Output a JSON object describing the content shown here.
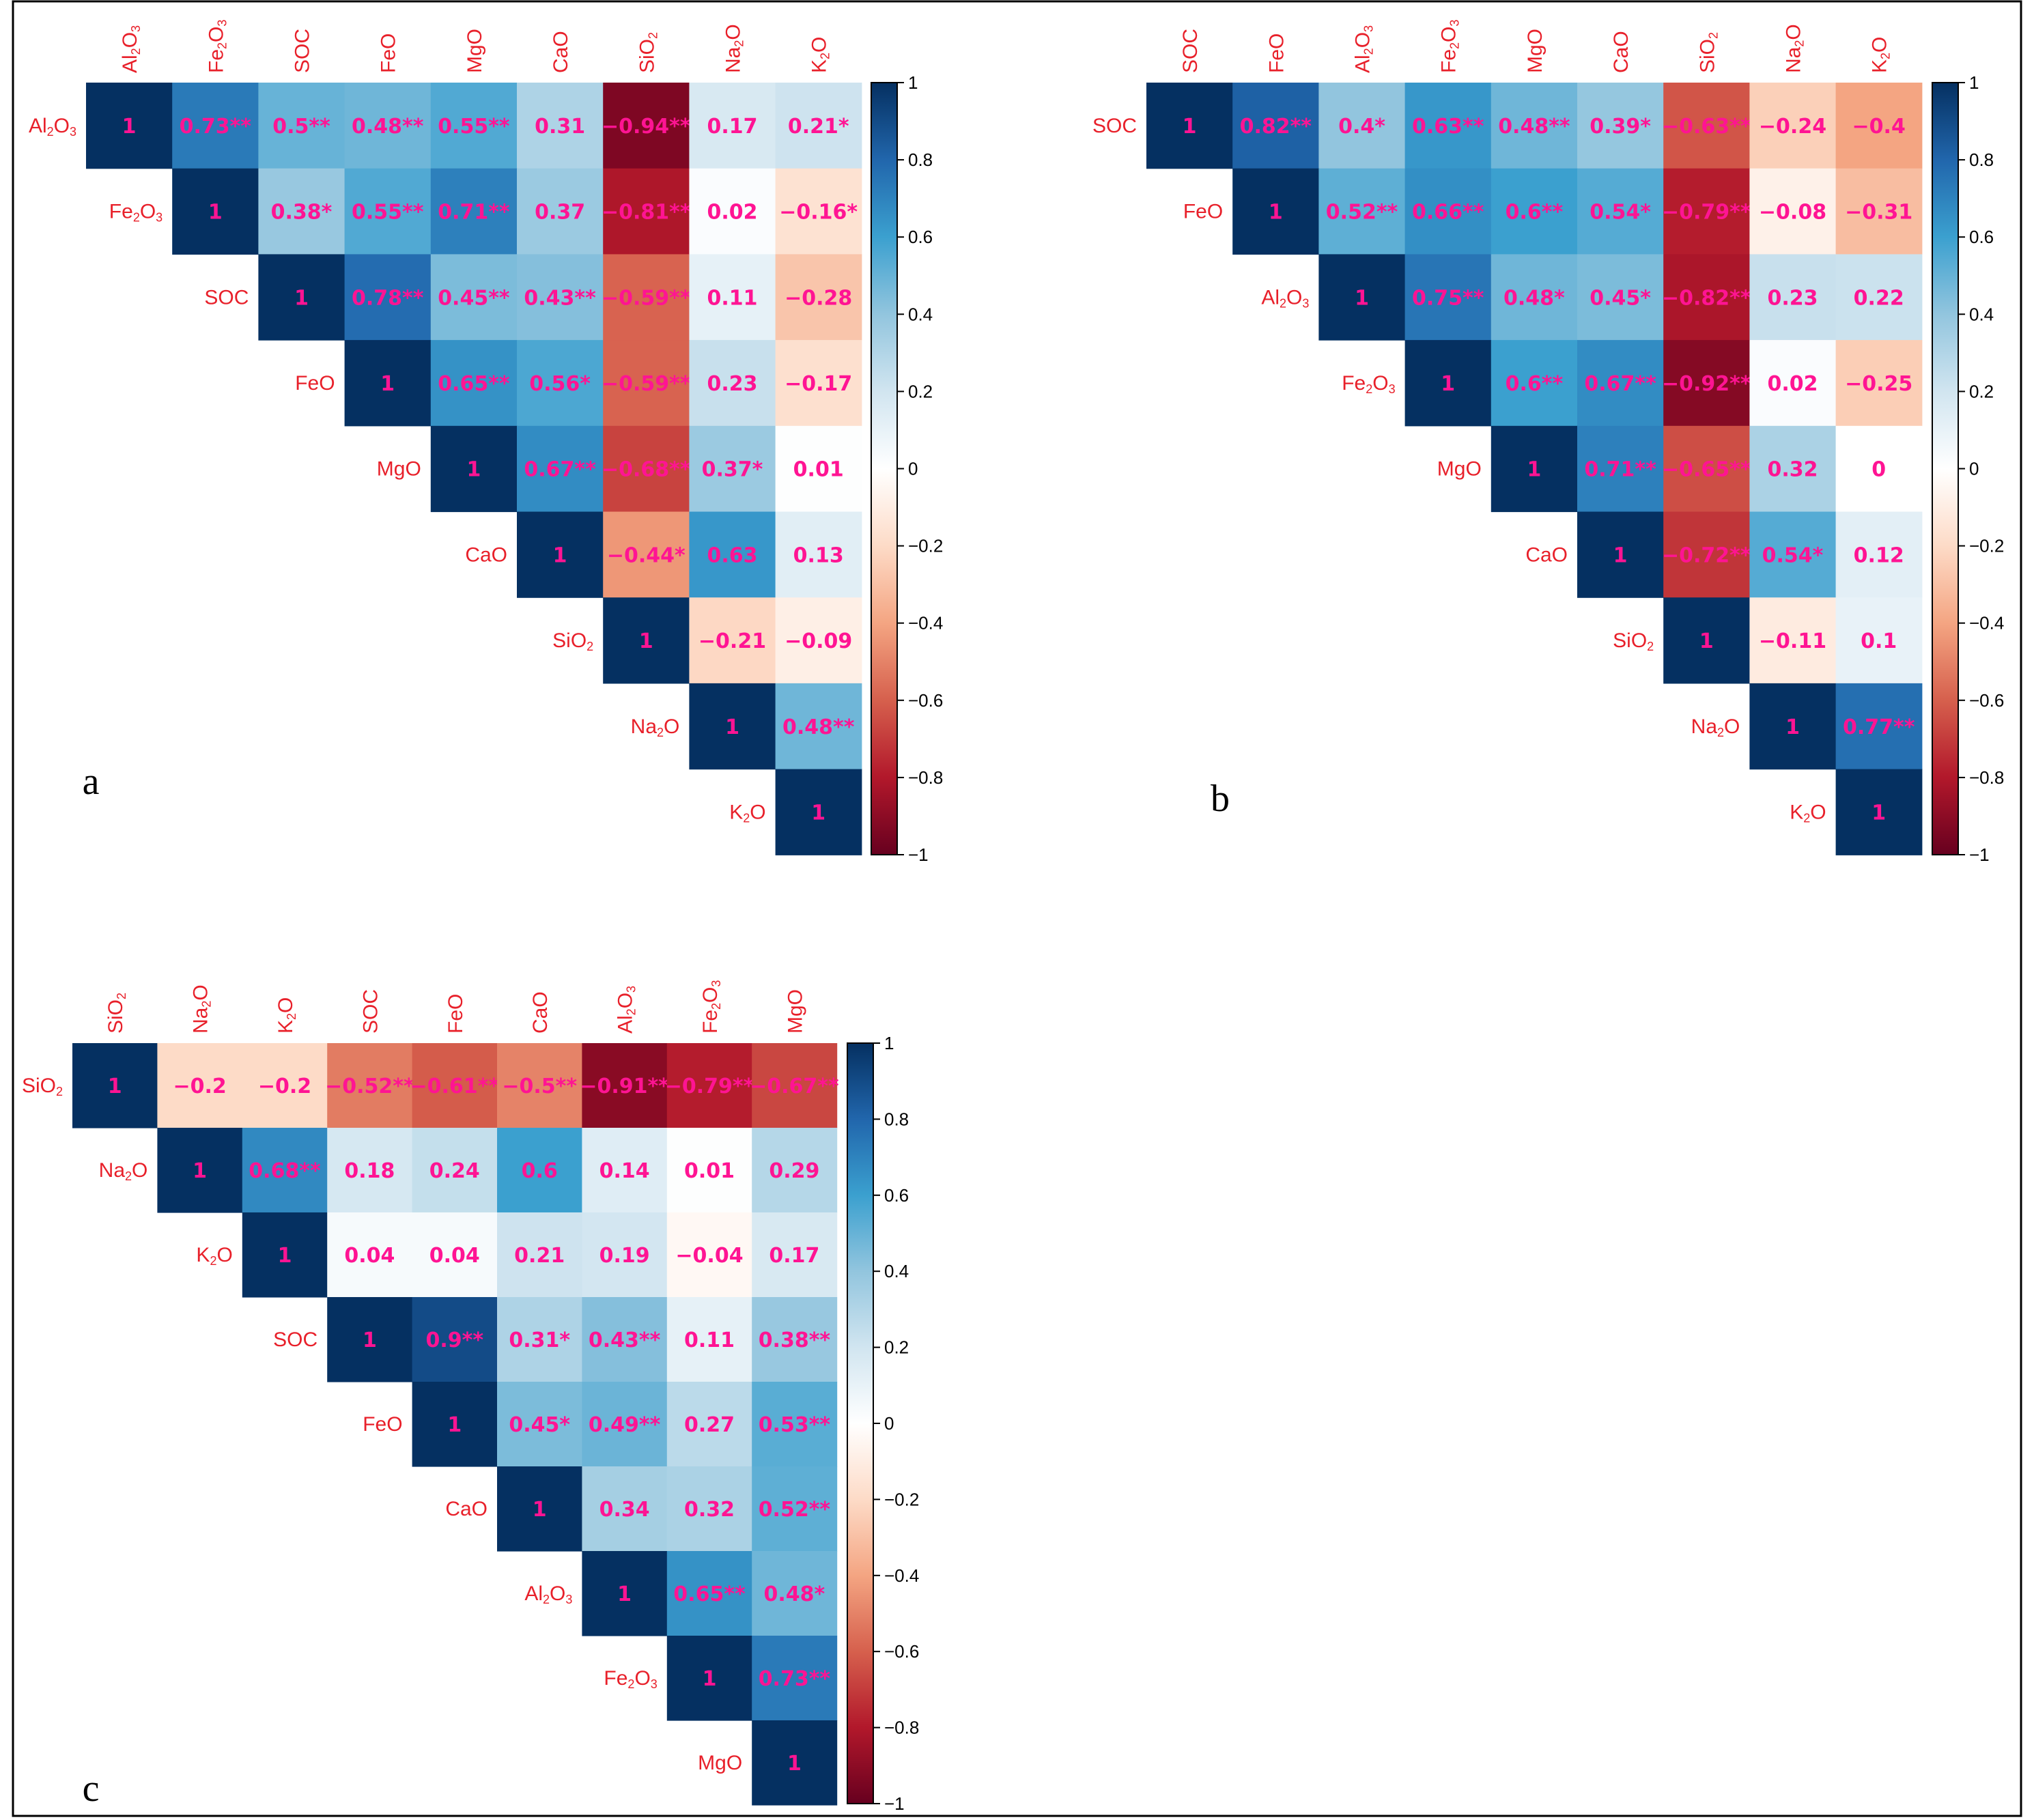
{
  "chart_data": [
    {
      "type": "heatmap",
      "panel_label": "a",
      "variables": [
        "Al2O3",
        "Fe2O3",
        "SOC",
        "FeO",
        "MgO",
        "CaO",
        "SiO2",
        "Na2O",
        "K2O"
      ],
      "values": [
        [
          1,
          0.73,
          0.5,
          0.48,
          0.55,
          0.31,
          -0.94,
          0.17,
          0.21
        ],
        [
          null,
          1,
          0.38,
          0.55,
          0.71,
          0.37,
          -0.81,
          0.02,
          -0.16
        ],
        [
          null,
          null,
          1,
          0.78,
          0.45,
          0.43,
          -0.59,
          0.11,
          -0.28
        ],
        [
          null,
          null,
          null,
          1,
          0.65,
          0.56,
          -0.59,
          0.23,
          -0.17
        ],
        [
          null,
          null,
          null,
          null,
          1,
          0.67,
          -0.68,
          0.37,
          0.01
        ],
        [
          null,
          null,
          null,
          null,
          null,
          1,
          -0.44,
          0.63,
          0.13
        ],
        [
          null,
          null,
          null,
          null,
          null,
          null,
          1,
          -0.21,
          -0.09
        ],
        [
          null,
          null,
          null,
          null,
          null,
          null,
          null,
          1,
          0.48
        ],
        [
          null,
          null,
          null,
          null,
          null,
          null,
          null,
          null,
          1
        ]
      ],
      "labels": [
        [
          "1",
          "0.73**",
          "0.5**",
          "0.48**",
          "0.55**",
          "0.31",
          "−0.94**",
          "0.17",
          "0.21*"
        ],
        [
          null,
          "1",
          "0.38*",
          "0.55**",
          "0.71**",
          "0.37",
          "−0.81**",
          "0.02",
          "−0.16*"
        ],
        [
          null,
          null,
          "1",
          "0.78**",
          "0.45**",
          "0.43**",
          "−0.59**",
          "0.11",
          "−0.28"
        ],
        [
          null,
          null,
          null,
          "1",
          "0.65**",
          "0.56*",
          "−0.59**",
          "0.23",
          "−0.17"
        ],
        [
          null,
          null,
          null,
          null,
          "1",
          "0.67**",
          "−0.68**",
          "0.37*",
          "0.01"
        ],
        [
          null,
          null,
          null,
          null,
          null,
          "1",
          "−0.44*",
          "0.63",
          "0.13"
        ],
        [
          null,
          null,
          null,
          null,
          null,
          null,
          "1",
          "−0.21",
          "−0.09"
        ],
        [
          null,
          null,
          null,
          null,
          null,
          null,
          null,
          "1",
          "0.48**"
        ],
        [
          null,
          null,
          null,
          null,
          null,
          null,
          null,
          null,
          "1"
        ]
      ],
      "colorbar_range": [
        -1,
        1
      ],
      "colorbar_ticks": [
        "1",
        "0.8",
        "0.6",
        "0.4",
        "0.2",
        "0",
        "−0.2",
        "−0.4",
        "−0.6",
        "−0.8",
        "−1"
      ]
    },
    {
      "type": "heatmap",
      "panel_label": "b",
      "variables": [
        "SOC",
        "FeO",
        "Al2O3",
        "Fe2O3",
        "MgO",
        "CaO",
        "SiO2",
        "Na2O",
        "K2O"
      ],
      "values": [
        [
          1,
          0.82,
          0.4,
          0.63,
          0.48,
          0.39,
          -0.63,
          -0.24,
          -0.4
        ],
        [
          null,
          1,
          0.52,
          0.66,
          0.6,
          0.54,
          -0.79,
          -0.08,
          -0.31
        ],
        [
          null,
          null,
          1,
          0.75,
          0.48,
          0.45,
          -0.82,
          0.23,
          0.22
        ],
        [
          null,
          null,
          null,
          1,
          0.6,
          0.67,
          -0.92,
          0.02,
          -0.25
        ],
        [
          null,
          null,
          null,
          null,
          1,
          0.71,
          -0.65,
          0.32,
          0
        ],
        [
          null,
          null,
          null,
          null,
          null,
          1,
          -0.72,
          0.54,
          0.12
        ],
        [
          null,
          null,
          null,
          null,
          null,
          null,
          1,
          -0.11,
          0.1
        ],
        [
          null,
          null,
          null,
          null,
          null,
          null,
          null,
          1,
          0.77
        ],
        [
          null,
          null,
          null,
          null,
          null,
          null,
          null,
          null,
          1
        ]
      ],
      "labels": [
        [
          "1",
          "0.82**",
          "0.4*",
          "0.63**",
          "0.48**",
          "0.39*",
          "−0.63**",
          "−0.24",
          "−0.4"
        ],
        [
          null,
          "1",
          "0.52**",
          "0.66**",
          "0.6**",
          "0.54*",
          "−0.79**",
          "−0.08",
          "−0.31"
        ],
        [
          null,
          null,
          "1",
          "0.75**",
          "0.48*",
          "0.45*",
          "−0.82**",
          "0.23",
          "0.22"
        ],
        [
          null,
          null,
          null,
          "1",
          "0.6**",
          "0.67**",
          "−0.92**",
          "0.02",
          "−0.25"
        ],
        [
          null,
          null,
          null,
          null,
          "1",
          "0.71**",
          "−0.65**",
          "0.32",
          "0"
        ],
        [
          null,
          null,
          null,
          null,
          null,
          "1",
          "−0.72**",
          "0.54*",
          "0.12"
        ],
        [
          null,
          null,
          null,
          null,
          null,
          null,
          "1",
          "−0.11",
          "0.1"
        ],
        [
          null,
          null,
          null,
          null,
          null,
          null,
          null,
          "1",
          "0.77**"
        ],
        [
          null,
          null,
          null,
          null,
          null,
          null,
          null,
          null,
          "1"
        ]
      ],
      "colorbar_range": [
        -1,
        1
      ],
      "colorbar_ticks": [
        "1",
        "0.8",
        "0.6",
        "0.4",
        "0.2",
        "0",
        "−0.2",
        "−0.4",
        "−0.6",
        "−0.8",
        "−1"
      ]
    },
    {
      "type": "heatmap",
      "panel_label": "c",
      "variables": [
        "SiO2",
        "Na2O",
        "K2O",
        "SOC",
        "FeO",
        "CaO",
        "Al2O3",
        "Fe2O3",
        "MgO"
      ],
      "values": [
        [
          1,
          -0.2,
          -0.2,
          -0.52,
          -0.61,
          -0.5,
          -0.91,
          -0.79,
          -0.67
        ],
        [
          null,
          1,
          0.68,
          0.18,
          0.24,
          0.6,
          0.14,
          0.01,
          0.29
        ],
        [
          null,
          null,
          1,
          0.04,
          0.04,
          0.21,
          0.19,
          -0.04,
          0.17
        ],
        [
          null,
          null,
          null,
          1,
          0.9,
          0.31,
          0.43,
          0.11,
          0.38
        ],
        [
          null,
          null,
          null,
          null,
          1,
          0.45,
          0.49,
          0.27,
          0.53
        ],
        [
          null,
          null,
          null,
          null,
          null,
          1,
          0.34,
          0.32,
          0.52
        ],
        [
          null,
          null,
          null,
          null,
          null,
          null,
          1,
          0.65,
          0.48
        ],
        [
          null,
          null,
          null,
          null,
          null,
          null,
          null,
          1,
          0.73
        ],
        [
          null,
          null,
          null,
          null,
          null,
          null,
          null,
          null,
          1
        ]
      ],
      "labels": [
        [
          "1",
          "−0.2",
          "−0.2",
          "−0.52**",
          "−0.61**",
          "−0.5**",
          "−0.91**",
          "−0.79**",
          "−0.67**"
        ],
        [
          null,
          "1",
          "0.68**",
          "0.18",
          "0.24",
          "0.6",
          "0.14",
          "0.01",
          "0.29"
        ],
        [
          null,
          null,
          "1",
          "0.04",
          "0.04",
          "0.21",
          "0.19",
          "−0.04",
          "0.17"
        ],
        [
          null,
          null,
          null,
          "1",
          "0.9**",
          "0.31*",
          "0.43**",
          "0.11",
          "0.38**"
        ],
        [
          null,
          null,
          null,
          null,
          "1",
          "0.45*",
          "0.49**",
          "0.27",
          "0.53**"
        ],
        [
          null,
          null,
          null,
          null,
          null,
          "1",
          "0.34",
          "0.32",
          "0.52**"
        ],
        [
          null,
          null,
          null,
          null,
          null,
          null,
          "1",
          "0.65**",
          "0.48*"
        ],
        [
          null,
          null,
          null,
          null,
          null,
          null,
          null,
          "1",
          "0.73**"
        ],
        [
          null,
          null,
          null,
          null,
          null,
          null,
          null,
          null,
          "1"
        ]
      ],
      "colorbar_range": [
        -1,
        1
      ],
      "colorbar_ticks": [
        "1",
        "0.8",
        "0.6",
        "0.4",
        "0.2",
        "0",
        "−0.2",
        "−0.4",
        "−0.6",
        "−0.8",
        "−1"
      ]
    }
  ],
  "colors": {
    "label": "#e8202a",
    "cell_text": "#ff1493",
    "frame": "#000000",
    "scale": [
      {
        "v": -1.0,
        "c": "#67001f"
      },
      {
        "v": -0.8,
        "c": "#b2182b"
      },
      {
        "v": -0.6,
        "c": "#d6604d"
      },
      {
        "v": -0.4,
        "c": "#f4a582"
      },
      {
        "v": -0.2,
        "c": "#fddbc7"
      },
      {
        "v": 0.0,
        "c": "#ffffff"
      },
      {
        "v": 0.2,
        "c": "#d1e5f0"
      },
      {
        "v": 0.4,
        "c": "#92c5de"
      },
      {
        "v": 0.6,
        "c": "#3ba0cf"
      },
      {
        "v": 0.8,
        "c": "#2166ac"
      },
      {
        "v": 1.0,
        "c": "#053061"
      }
    ]
  }
}
